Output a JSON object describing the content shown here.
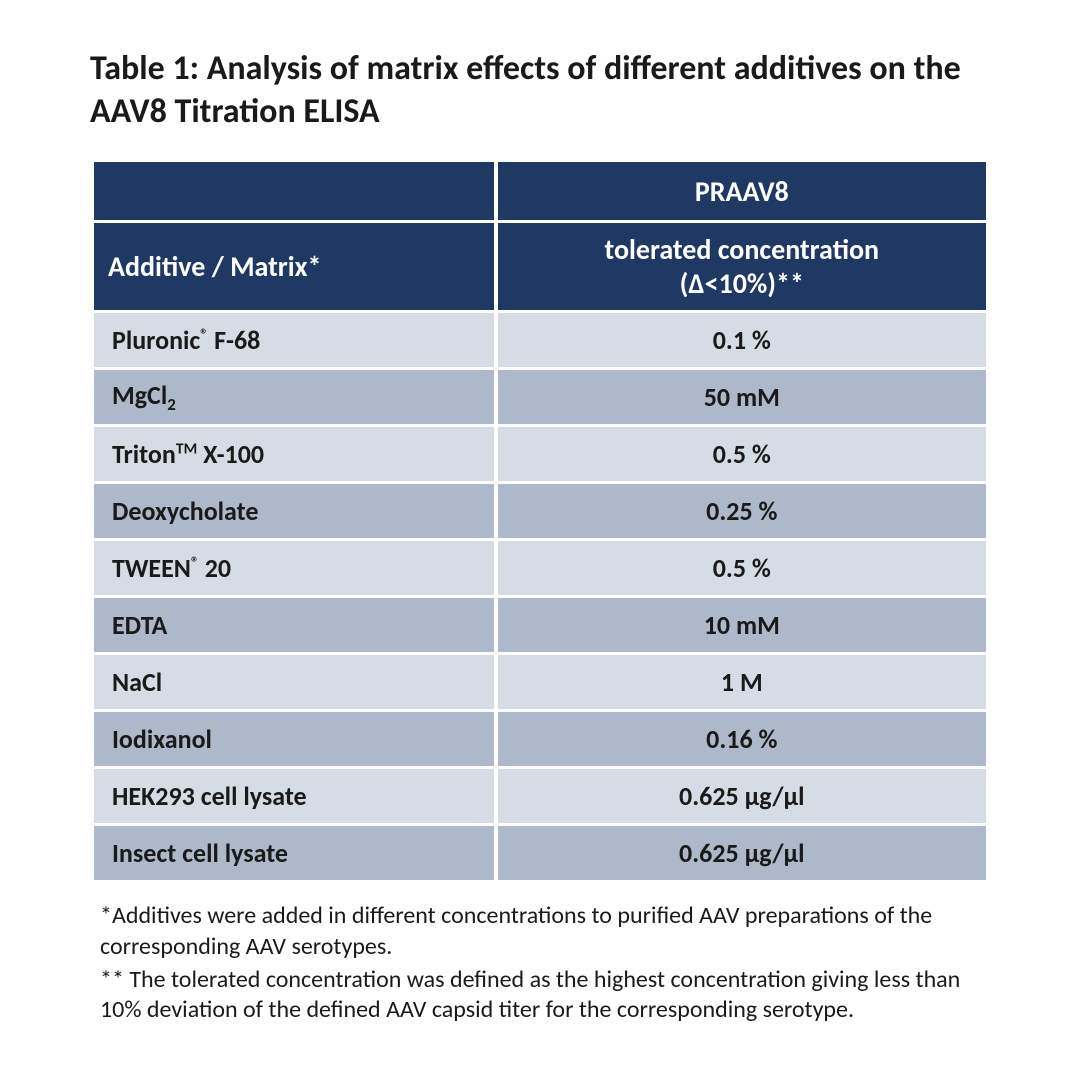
{
  "title": "Table 1: Analysis of matrix effects of different additives on the AAV8 Titration ELISA",
  "table": {
    "type": "table",
    "header_bg": "#1f3864",
    "header_text_color": "#ffffff",
    "row_colors": [
      "#d6dce5",
      "#adb9ca"
    ],
    "background_color": "#ffffff",
    "cell_text_color": "#1a1a1a",
    "title_fontsize": 34,
    "header_fontsize": 28,
    "cell_fontsize": 26,
    "col_widths_pct": [
      45,
      55
    ],
    "top_header": {
      "blank": "",
      "praav8": "PRAAV8"
    },
    "sub_header": {
      "additive": "Additive / Matrix*",
      "tolerated_l1": "tolerated concentration",
      "tolerated_l2": "(Δ<10%)**"
    },
    "rows": [
      {
        "additive_pre": "Pluronic",
        "sup": "®",
        "additive_post": " F-68",
        "value": "0.1 %"
      },
      {
        "additive_pre": "MgCl",
        "sub": "2",
        "additive_post": "",
        "value": "50 mM"
      },
      {
        "additive_pre": "Triton",
        "sup": "TM",
        "additive_post": " X-100",
        "value": "0.5 %"
      },
      {
        "additive_pre": "Deoxycholate",
        "additive_post": "",
        "value": "0.25 %"
      },
      {
        "additive_pre": "TWEEN",
        "sup": "®",
        "additive_post": " 20",
        "value": "0.5 %"
      },
      {
        "additive_pre": "EDTA",
        "additive_post": "",
        "value": "10 mM"
      },
      {
        "additive_pre": "NaCl",
        "additive_post": "",
        "value": "1 M"
      },
      {
        "additive_pre": "Iodixanol",
        "additive_post": "",
        "value": "0.16 %"
      },
      {
        "additive_pre": "HEK293 cell lysate",
        "additive_post": "",
        "value": "0.625 µg/µl"
      },
      {
        "additive_pre": "Insect cell lysate",
        "additive_post": "",
        "value": "0.625 µg/µl"
      }
    ]
  },
  "footnotes": {
    "note1": "*Additives were added in different concentrations to purified AAV preparations of the corresponding AAV serotypes.",
    "note2": "** The tolerated concentration was defined as the highest concentration giving less than 10% deviation of the defined AAV capsid titer for the corresponding serotype."
  }
}
